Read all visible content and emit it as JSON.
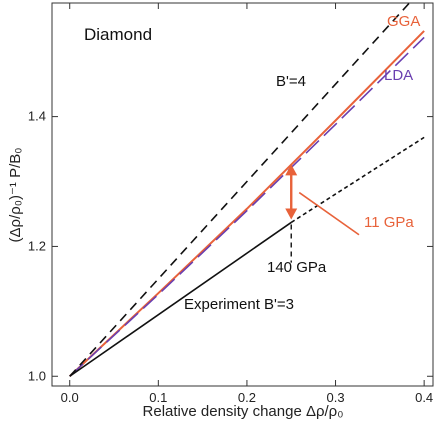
{
  "chart_data": {
    "type": "line",
    "title": "Diamond",
    "xlabel": "Relative density change Δρ/ρ₀",
    "ylabel": "(Δρ/ρ₀)⁻¹ P/B₀",
    "xlim": [
      -0.02,
      0.41
    ],
    "ylim": [
      0.985,
      1.575
    ],
    "xticks": [
      0.0,
      0.1,
      0.2,
      0.3,
      0.4
    ],
    "xtick_labels": [
      "0.0",
      "0.1",
      "0.2",
      "0.3",
      "0.4"
    ],
    "yticks": [
      1.0,
      1.2,
      1.4
    ],
    "ytick_labels": [
      "1.0",
      "1.2",
      "1.4"
    ],
    "grid": false,
    "series": [
      {
        "name": "GGA",
        "color": "#e8623a",
        "style": "solid",
        "x": [
          0.0,
          0.1,
          0.2,
          0.3,
          0.4
        ],
        "y": [
          1.0,
          1.128,
          1.258,
          1.394,
          1.532
        ]
      },
      {
        "name": "LDA",
        "color": "#6a3fb0",
        "style": "long-dash",
        "x": [
          0.0,
          0.1,
          0.2,
          0.3,
          0.4
        ],
        "y": [
          1.0,
          1.126,
          1.255,
          1.388,
          1.522
        ]
      },
      {
        "name": "B'=4",
        "color": "#111111",
        "style": "dash",
        "x": [
          0.0,
          0.4
        ],
        "y": [
          1.0,
          1.6
        ]
      },
      {
        "name": "Experiment B'=3",
        "color": "#111111",
        "style": "solid",
        "x": [
          0.0,
          0.25
        ],
        "y": [
          1.0,
          1.237
        ]
      },
      {
        "name": "",
        "color": "#111111",
        "style": "short-dash",
        "x": [
          0.25,
          0.4
        ],
        "y": [
          1.237,
          1.368
        ]
      }
    ],
    "annotations": {
      "title_label": "Diamond",
      "gga_label": "GGA",
      "lda_label": "LDA",
      "b4_label": "B'=4",
      "exp_label": "Experiment B'=3",
      "pressure_label": "140 GPa",
      "gap_label": "11 GPa",
      "marker_x": 0.25,
      "gap_y_low": 1.24,
      "gap_y_high": 1.328
    },
    "colors": {
      "accent": "#e8623a",
      "lda": "#6a3fb0",
      "ink": "#111111"
    }
  }
}
